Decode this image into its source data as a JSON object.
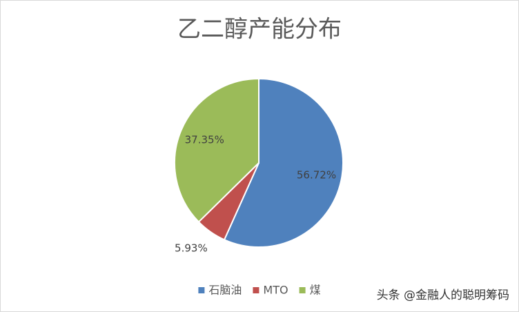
{
  "chart_data": {
    "type": "pie",
    "title": "乙二醇产能分布",
    "categories": [
      "石脑油",
      "MTO",
      "煤"
    ],
    "values": [
      56.72,
      5.93,
      37.35
    ],
    "value_labels": [
      "56.72%",
      "5.93%",
      "37.35%"
    ],
    "colors": [
      "#4f81bd",
      "#c0504d",
      "#9bbb59"
    ],
    "legend": "bottom"
  },
  "watermark": "头条 @金融人的聪明筹码"
}
